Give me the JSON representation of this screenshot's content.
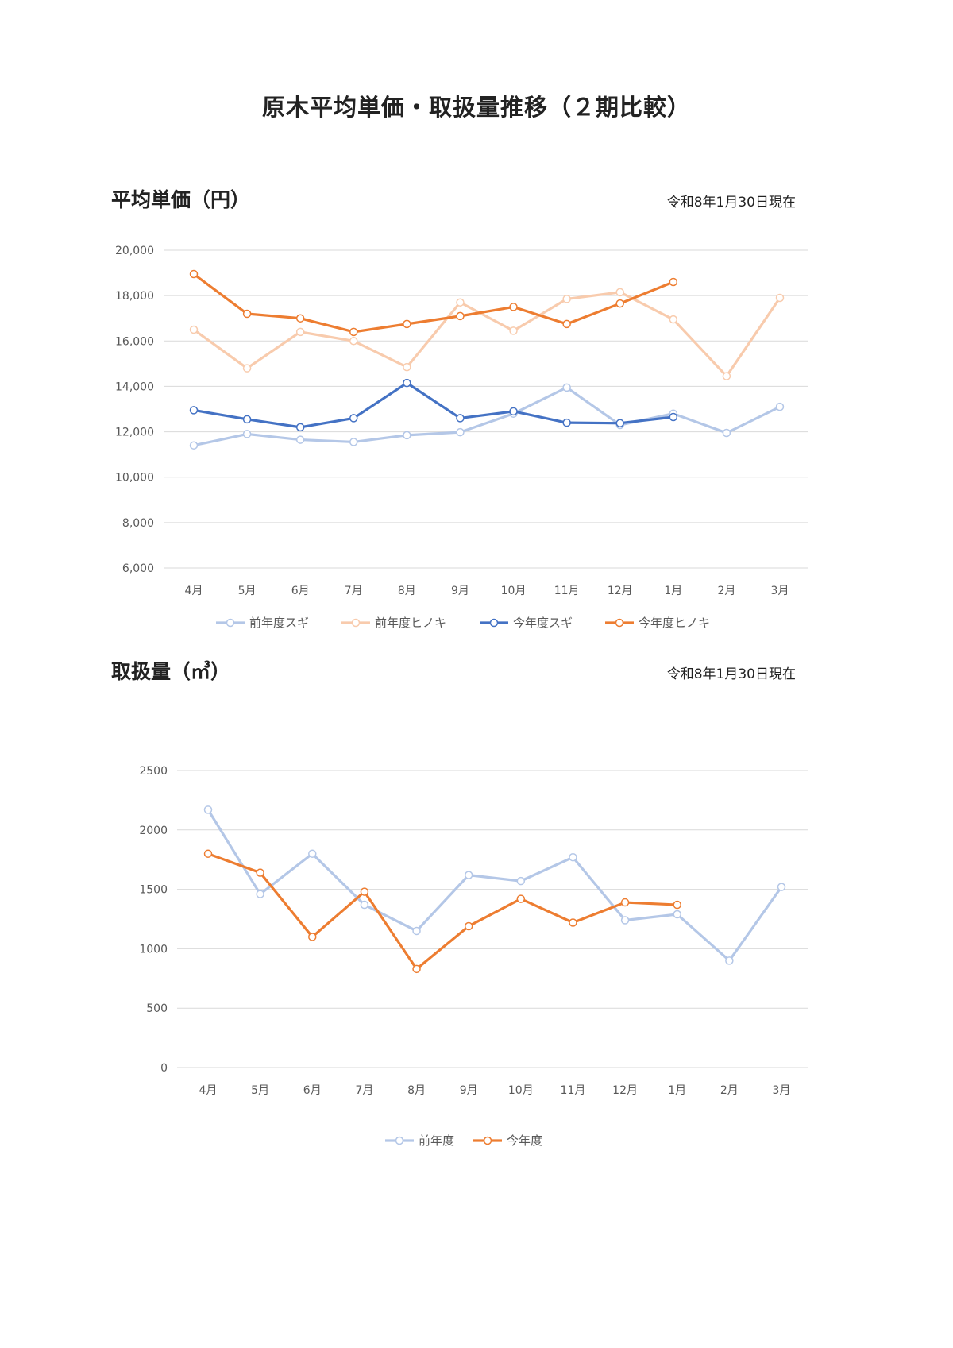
{
  "page": {
    "title": "原木平均単価・取扱量推移（２期比較）"
  },
  "price_section": {
    "title": "平均単価（円）",
    "as_of": "令和8年1月30日現在"
  },
  "volume_section": {
    "title": "取扱量（㎥）",
    "as_of": "令和8年1月30日現在"
  },
  "chart_data": [
    {
      "type": "line",
      "title": "平均単価（円）",
      "categories": [
        "4月",
        "5月",
        "6月",
        "7月",
        "8月",
        "9月",
        "10月",
        "11月",
        "12月",
        "1月",
        "2月",
        "3月"
      ],
      "ylim": [
        6000,
        20000
      ],
      "yticks": [
        6000,
        8000,
        10000,
        12000,
        14000,
        16000,
        18000,
        20000
      ],
      "ytick_labels": [
        "6,000",
        "8,000",
        "10,000",
        "12,000",
        "14,000",
        "16,000",
        "18,000",
        "20,000"
      ],
      "grid": true,
      "legend": "bottom",
      "series": [
        {
          "name": "前年度スギ",
          "color": "#b4c7e7",
          "values": [
            11400,
            11900,
            11650,
            11550,
            11850,
            11980,
            12800,
            13950,
            12300,
            12800,
            11950,
            13100
          ]
        },
        {
          "name": "前年度ヒノキ",
          "color": "#f8cbad",
          "values": [
            16500,
            14800,
            16400,
            16000,
            14850,
            17700,
            16450,
            17850,
            18150,
            16950,
            14450,
            17900
          ]
        },
        {
          "name": "今年度スギ",
          "color": "#4472c4",
          "values": [
            12950,
            12550,
            12200,
            12600,
            14150,
            12600,
            12900,
            12400,
            12380,
            12650,
            null,
            null
          ]
        },
        {
          "name": "今年度ヒノキ",
          "color": "#ed7d31",
          "values": [
            18950,
            17200,
            17000,
            16400,
            16750,
            17100,
            17500,
            16750,
            17650,
            18600,
            null,
            null
          ]
        }
      ]
    },
    {
      "type": "line",
      "title": "取扱量（㎥）",
      "categories": [
        "4月",
        "5月",
        "6月",
        "7月",
        "8月",
        "9月",
        "10月",
        "11月",
        "12月",
        "1月",
        "2月",
        "3月"
      ],
      "ylim": [
        0,
        2500
      ],
      "yticks": [
        0,
        500,
        1000,
        1500,
        2000,
        2500
      ],
      "ytick_labels": [
        "0",
        "500",
        "1000",
        "1500",
        "2000",
        "2500"
      ],
      "grid": true,
      "legend": "bottom",
      "series": [
        {
          "name": "前年度",
          "color": "#b4c7e7",
          "values": [
            2170,
            1460,
            1800,
            1370,
            1150,
            1620,
            1570,
            1770,
            1240,
            1290,
            900,
            1520
          ]
        },
        {
          "name": "今年度",
          "color": "#ed7d31",
          "values": [
            1800,
            1640,
            1100,
            1480,
            830,
            1190,
            1420,
            1220,
            1390,
            1370,
            null,
            null
          ]
        }
      ]
    }
  ]
}
